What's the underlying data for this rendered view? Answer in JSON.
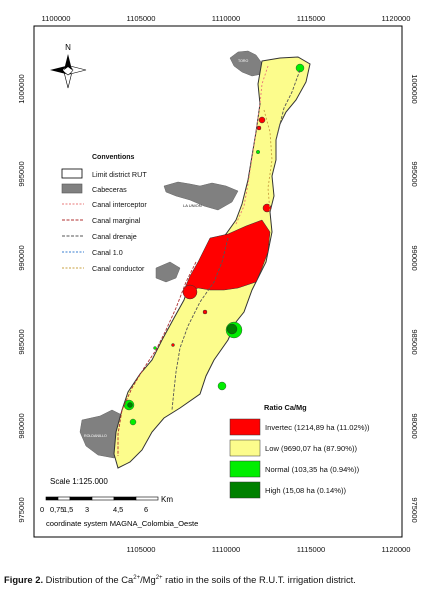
{
  "map": {
    "top_x_ticks": [
      "1100000",
      "1105000",
      "1110000",
      "1115000",
      "1120000"
    ],
    "bottom_x_ticks": [
      "1105000",
      "1110000",
      "1115000",
      "1120000"
    ],
    "left_y_ticks": [
      "1000000",
      "995000",
      "990000",
      "985000",
      "980000",
      "975000"
    ],
    "right_y_ticks": [
      "1000000",
      "995000",
      "990000",
      "985000",
      "980000",
      "975000"
    ],
    "north_label": "N",
    "place_labels": {
      "roldanillo": "ROLDANILLO",
      "la_union": "LA UNION",
      "toro": "TORO"
    },
    "colors": {
      "background": "#ffffff",
      "district_fill": "#fcfc8c",
      "invertec": "#ff0000",
      "normal": "#00ee00",
      "high": "#008000",
      "cabeceras": "#808080",
      "canal_interceptor": "#e87878",
      "canal_marginal": "#b03030",
      "canal_drenaje": "#555555",
      "canal_1_0": "#3a7fd0",
      "canal_conductor": "#c8a040"
    }
  },
  "conventions": {
    "title": "Conventions",
    "items": [
      {
        "label": "Limit district RUT",
        "icon": "outline-box-icon"
      },
      {
        "label": "Cabeceras",
        "icon": "gray-box-icon"
      },
      {
        "label": "Canal interceptor",
        "icon": "interceptor-line-icon"
      },
      {
        "label": "Canal marginal",
        "icon": "marginal-line-icon"
      },
      {
        "label": "Canal drenaje",
        "icon": "drenaje-line-icon"
      },
      {
        "label": "Canal 1.0",
        "icon": "canal-1-line-icon"
      },
      {
        "label": "Canal conductor",
        "icon": "conductor-line-icon"
      }
    ]
  },
  "ratio_legend": {
    "title": "Ratio Ca/Mg",
    "items": [
      {
        "label": "Invertec (1214,89 ha (11.02%))"
      },
      {
        "label": "Low (9690,07 ha (87.90%))"
      },
      {
        "label": "Normal (103,35 ha (0.94%))"
      },
      {
        "label": "High (15,08 ha (0.14%))"
      }
    ]
  },
  "scale": {
    "label": "Scale  1:125.000",
    "ticks": [
      "0",
      "0,75",
      "1,5",
      "3",
      "4,5",
      "6"
    ],
    "unit": "Km"
  },
  "coordinate_system": "coordinate system  MAGNA_Colombia_Oeste",
  "caption": {
    "prefix": "Figure 2.",
    "text_before": " Distribution of the Ca",
    "sup1": "2+",
    "text_mid": "/Mg",
    "sup2": "2+",
    "text_after": " ratio in the soils of the R.U.T. irrigation district."
  }
}
